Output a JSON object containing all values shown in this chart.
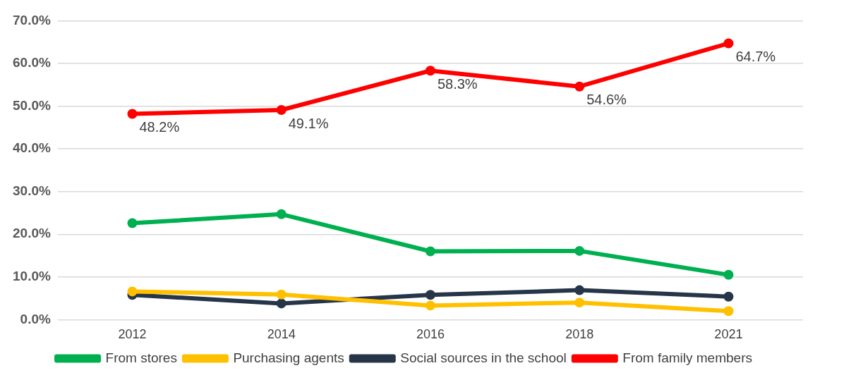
{
  "chart_data": {
    "type": "line",
    "categories": [
      "2012",
      "2014",
      "2016",
      "2018",
      "2021"
    ],
    "series": [
      {
        "name": "From stores",
        "color": "#00b050",
        "values": [
          22.6,
          24.7,
          16.0,
          16.1,
          10.5
        ]
      },
      {
        "name": "Purchasing agents",
        "color": "#ffc000",
        "values": [
          6.6,
          5.9,
          3.3,
          4.0,
          2.0
        ]
      },
      {
        "name": "Social sources in the school",
        "color": "#263548",
        "values": [
          5.8,
          3.8,
          5.8,
          6.9,
          5.4
        ]
      },
      {
        "name": "From family members",
        "color": "#ff0000",
        "values": [
          48.2,
          49.1,
          58.3,
          54.6,
          64.7
        ],
        "value_labels": [
          "48.2%",
          "49.1%",
          "58.3%",
          "54.6%",
          "64.7%"
        ]
      }
    ],
    "ylim": [
      0,
      70
    ],
    "yticks": [
      {
        "value": 0,
        "label": "0.0%"
      },
      {
        "value": 10,
        "label": "10.0%"
      },
      {
        "value": 20,
        "label": "20.0%"
      },
      {
        "value": 30,
        "label": "30.0%"
      },
      {
        "value": 40,
        "label": "40.0%"
      },
      {
        "value": 50,
        "label": "50.0%"
      },
      {
        "value": 60,
        "label": "60.0%"
      },
      {
        "value": 70,
        "label": "70.0%"
      }
    ],
    "grid": "y",
    "legend": "bottom",
    "marker": "circle",
    "line_style": "solid"
  }
}
